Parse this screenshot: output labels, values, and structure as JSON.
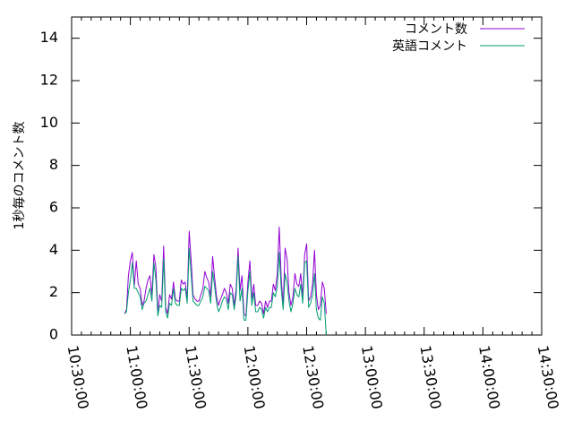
{
  "chart_data": {
    "type": "line",
    "ylabel": "1秒毎のコメント数",
    "ylim": [
      0,
      15
    ],
    "yticks": [
      0,
      2,
      4,
      6,
      8,
      10,
      12,
      14
    ],
    "xlim": [
      "10:30:00",
      "14:30:00"
    ],
    "xticks": [
      "10:30:00",
      "11:00:00",
      "11:30:00",
      "12:00:00",
      "12:30:00",
      "13:00:00",
      "13:30:00",
      "14:00:00",
      "14:30:00"
    ],
    "grid": false,
    "legend_position": "top-right",
    "x_start": "10:57:00",
    "x_step_seconds": 60,
    "series": [
      {
        "name": "コメント数",
        "color": "#9400d3",
        "values": [
          1.0,
          1.2,
          2.8,
          3.5,
          3.9,
          2.3,
          3.5,
          2.4,
          2.2,
          1.4,
          1.6,
          2.2,
          2.6,
          2.8,
          1.9,
          3.8,
          3.2,
          1.1,
          1.9,
          1.6,
          4.2,
          1.3,
          1.0,
          1.9,
          1.7,
          2.5,
          1.7,
          1.6,
          1.6,
          2.6,
          2.4,
          2.5,
          1.7,
          4.9,
          3.6,
          1.9,
          1.7,
          1.6,
          1.6,
          1.9,
          2.2,
          3.0,
          2.7,
          2.5,
          1.8,
          3.7,
          2.7,
          1.8,
          1.4,
          1.7,
          1.9,
          2.2,
          2.0,
          1.5,
          2.4,
          2.2,
          1.4,
          2.2,
          4.1,
          2.1,
          2.8,
          1.0,
          0.9,
          2.5,
          3.5,
          1.7,
          2.4,
          1.4,
          1.4,
          1.6,
          1.5,
          1.0,
          1.6,
          1.3,
          1.6,
          1.6,
          2.4,
          2.1,
          2.9,
          5.1,
          2.7,
          1.4,
          4.1,
          3.6,
          2.0,
          1.4,
          1.8,
          2.9,
          2.4,
          2.3,
          2.9,
          1.8,
          3.8,
          4.3,
          1.6,
          1.8,
          2.4,
          4.0,
          1.9,
          1.2,
          1.4,
          2.5,
          2.2,
          1.0
        ]
      },
      {
        "name": "英語コメント",
        "color": "#009e73",
        "values": [
          1.0,
          1.1,
          2.0,
          2.6,
          3.4,
          2.2,
          2.2,
          2.0,
          1.8,
          1.2,
          1.5,
          1.6,
          1.9,
          2.2,
          1.6,
          3.4,
          2.6,
          0.9,
          1.4,
          1.3,
          3.6,
          1.1,
          0.8,
          1.5,
          1.4,
          2.2,
          1.5,
          1.4,
          1.4,
          2.2,
          2.1,
          2.2,
          1.5,
          4.1,
          2.9,
          1.6,
          1.5,
          1.4,
          1.4,
          1.6,
          1.8,
          2.3,
          2.2,
          2.1,
          1.5,
          3.0,
          2.3,
          1.5,
          1.1,
          1.3,
          1.6,
          1.8,
          1.7,
          1.2,
          2.0,
          1.9,
          1.2,
          1.9,
          3.7,
          1.6,
          2.2,
          0.7,
          0.7,
          2.1,
          3.0,
          1.4,
          2.0,
          1.1,
          1.1,
          1.3,
          1.2,
          0.8,
          1.3,
          1.1,
          1.3,
          1.3,
          2.0,
          1.8,
          2.3,
          3.9,
          2.2,
          1.2,
          2.9,
          2.5,
          1.6,
          1.1,
          1.5,
          2.2,
          1.9,
          1.8,
          2.4,
          1.5,
          3.4,
          3.5,
          1.3,
          1.5,
          1.9,
          2.9,
          1.2,
          0.8,
          0.7,
          1.8,
          1.5,
          0.0
        ]
      }
    ]
  }
}
